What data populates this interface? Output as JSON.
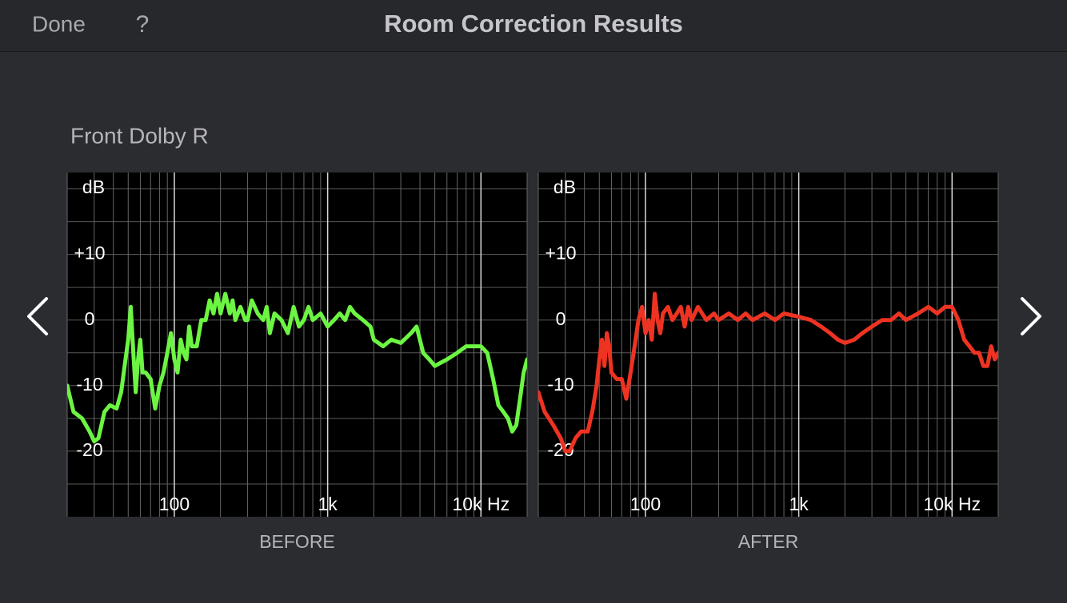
{
  "header": {
    "left_button": "Done",
    "help_button": "?",
    "title": "Room Correction Results"
  },
  "channel": "Front Dolby R",
  "chart_data": [
    {
      "type": "line",
      "caption": "BEFORE",
      "y_label": "dB",
      "log_x": true,
      "xlim": [
        20,
        20000
      ],
      "ylim": [
        -30,
        22.5
      ],
      "xticks": [
        100,
        {
          "value": 1000,
          "label": "1k"
        },
        {
          "value": 10000,
          "label": "10k Hz"
        }
      ],
      "yticks": [
        {
          "value": 10,
          "label": "+10"
        },
        0,
        -10,
        -20
      ],
      "xgrid": [
        20,
        30,
        40,
        50,
        60,
        70,
        80,
        90,
        100,
        200,
        300,
        400,
        500,
        600,
        700,
        800,
        900,
        1000,
        2000,
        3000,
        4000,
        5000,
        6000,
        7000,
        8000,
        9000,
        10000,
        20000
      ],
      "ygrid": [
        -25,
        -20,
        -15,
        -10,
        -5,
        0,
        5,
        10,
        15,
        20
      ],
      "x": [
        20,
        22,
        25,
        28,
        30,
        32,
        35,
        38,
        42,
        45,
        48,
        50,
        52,
        54,
        56,
        58,
        60,
        62,
        65,
        70,
        75,
        80,
        85,
        90,
        95,
        100,
        105,
        110,
        115,
        120,
        125,
        130,
        140,
        150,
        160,
        170,
        180,
        190,
        200,
        215,
        230,
        240,
        250,
        270,
        290,
        300,
        320,
        350,
        380,
        400,
        420,
        450,
        500,
        550,
        600,
        650,
        700,
        750,
        800,
        900,
        1000,
        1100,
        1200,
        1300,
        1400,
        1500,
        1700,
        1900,
        2000,
        2300,
        2600,
        3000,
        3500,
        3800,
        4200,
        4600,
        5000,
        6000,
        7000,
        8000,
        9000,
        10000,
        11000,
        12000,
        13000,
        14000,
        15000,
        16000,
        17000,
        18000,
        19000,
        20000
      ],
      "series": [
        {
          "color": "#6cf542",
          "values": [
            -10,
            -14,
            -15,
            -17,
            -18.5,
            -18,
            -14,
            -13,
            -13.5,
            -11,
            -6,
            -3,
            2,
            -5,
            -11,
            -6,
            -3,
            -8,
            -8,
            -9,
            -13.5,
            -10,
            -8,
            -5,
            -2,
            -6,
            -8,
            -3,
            -5,
            -6,
            -1,
            -4,
            -4,
            0,
            0,
            3,
            1,
            4,
            1,
            4,
            1,
            3,
            0,
            2,
            0,
            0,
            3,
            1,
            0,
            2,
            -2,
            1,
            0,
            -2,
            2,
            -1,
            0,
            2,
            0,
            1,
            -1,
            0,
            1,
            0,
            2,
            1,
            0,
            -1,
            -3,
            -4,
            -3,
            -3.5,
            -2,
            -1,
            -5,
            -6,
            -7,
            -6,
            -5,
            -4,
            -4,
            -4,
            -5,
            -9,
            -13,
            -14,
            -15,
            -17,
            -16,
            -12,
            -8,
            -6
          ]
        }
      ]
    },
    {
      "type": "line",
      "caption": "AFTER",
      "y_label": "dB",
      "log_x": true,
      "xlim": [
        20,
        20000
      ],
      "ylim": [
        -30,
        22.5
      ],
      "xticks": [
        100,
        {
          "value": 1000,
          "label": "1k"
        },
        {
          "value": 10000,
          "label": "10k Hz"
        }
      ],
      "yticks": [
        {
          "value": 10,
          "label": "+10"
        },
        0,
        -10,
        -20
      ],
      "xgrid": [
        20,
        30,
        40,
        50,
        60,
        70,
        80,
        90,
        100,
        200,
        300,
        400,
        500,
        600,
        700,
        800,
        900,
        1000,
        2000,
        3000,
        4000,
        5000,
        6000,
        7000,
        8000,
        9000,
        10000,
        20000
      ],
      "ygrid": [
        -25,
        -20,
        -15,
        -10,
        -5,
        0,
        5,
        10,
        15,
        20
      ],
      "x": [
        20,
        22,
        25,
        28,
        30,
        32,
        35,
        38,
        42,
        45,
        48,
        50,
        52,
        54,
        56,
        58,
        60,
        65,
        70,
        75,
        80,
        85,
        90,
        95,
        100,
        105,
        110,
        115,
        120,
        125,
        130,
        140,
        150,
        160,
        170,
        180,
        190,
        200,
        220,
        250,
        280,
        300,
        350,
        400,
        450,
        500,
        600,
        700,
        800,
        1000,
        1200,
        1400,
        1600,
        1800,
        2000,
        2300,
        2600,
        3000,
        3500,
        4000,
        4500,
        5000,
        6000,
        7000,
        8000,
        9000,
        10000,
        11000,
        12000,
        13000,
        14000,
        15000,
        16000,
        17000,
        18000,
        19000,
        20000
      ],
      "series": [
        {
          "color": "#ee3322",
          "values": [
            -11,
            -14,
            -16,
            -18,
            -20,
            -20,
            -18,
            -17,
            -17,
            -14,
            -10,
            -6,
            -3,
            -7,
            -2,
            -4,
            -8,
            -9,
            -9,
            -12,
            -8,
            -4,
            0,
            2,
            -2,
            0,
            -3,
            4,
            0,
            -2,
            1,
            2,
            0,
            1,
            2,
            -1,
            2,
            0,
            2,
            0,
            1,
            0,
            1,
            0,
            1,
            0,
            1,
            0,
            1,
            0.5,
            0,
            -1,
            -2,
            -3,
            -3.5,
            -3,
            -2,
            -1,
            0,
            0,
            1,
            0,
            1,
            2,
            1,
            2,
            2,
            0,
            -3,
            -4,
            -5,
            -5,
            -7,
            -7,
            -4,
            -6,
            -5
          ]
        }
      ]
    }
  ]
}
